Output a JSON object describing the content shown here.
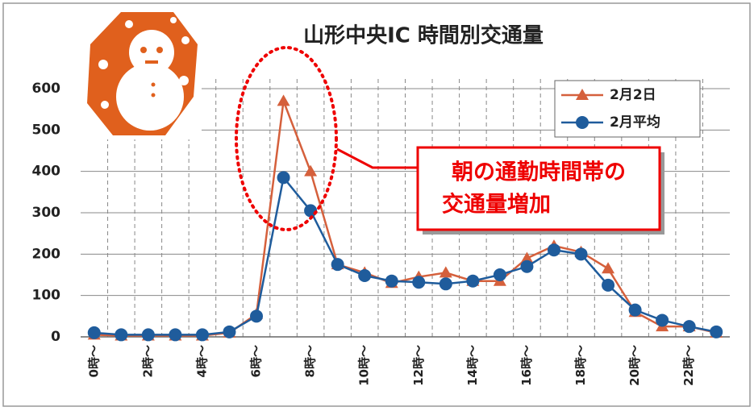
{
  "chart_data": {
    "type": "line",
    "title": "山形中央IC 時間別交通量",
    "categories": [
      "0時～",
      null,
      "2時～",
      null,
      "4時～",
      null,
      "6時～",
      null,
      "8時～",
      null,
      "10時～",
      null,
      "12時～",
      null,
      "14時～",
      null,
      "16時～",
      null,
      "18時～",
      null,
      "20時～",
      null,
      "22時～",
      null
    ],
    "series": [
      {
        "name": "2月2日",
        "color": "#d5603c",
        "marker": "triangle",
        "values": [
          5,
          3,
          3,
          3,
          3,
          10,
          55,
          570,
          400,
          175,
          155,
          130,
          145,
          155,
          135,
          135,
          190,
          220,
          205,
          165,
          60,
          25,
          25,
          10
        ]
      },
      {
        "name": "2月平均",
        "color": "#1f5c9c",
        "marker": "circle",
        "values": [
          10,
          5,
          5,
          5,
          5,
          12,
          50,
          385,
          305,
          175,
          148,
          135,
          132,
          128,
          135,
          150,
          170,
          210,
          200,
          125,
          65,
          40,
          25,
          12
        ]
      }
    ],
    "ylim": [
      0,
      600
    ],
    "yticks": [
      0,
      100,
      200,
      300,
      400,
      500,
      600
    ],
    "grid": true,
    "legend": "upper right",
    "annotation": [
      "朝の通勤時間帯の",
      "交通量増加"
    ]
  }
}
